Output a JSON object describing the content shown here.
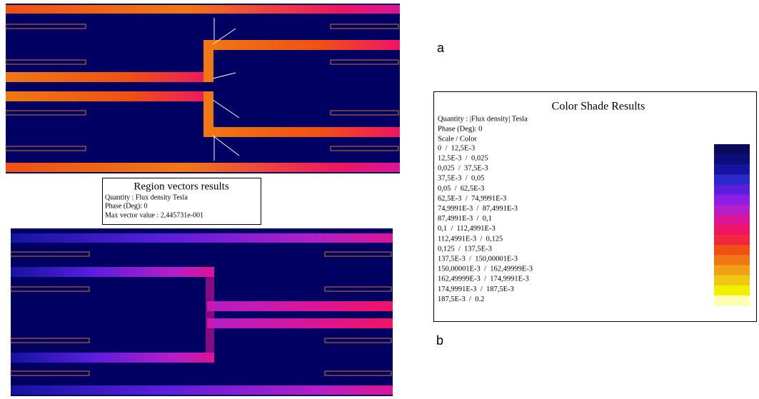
{
  "figure": {
    "labels": {
      "a": "a",
      "b": "b"
    },
    "region_vectors": {
      "title": "Region vectors results",
      "quantity": "Quantity : Flux density Tesla",
      "phase": "Phase (Deg): 0",
      "max_vector": "Max vector value : 2,445731e-001"
    },
    "color_shade": {
      "title": "Color Shade Results",
      "quantity": "Quantity : |Flux density| Tesla",
      "phase": "Phase (Deg): 0",
      "scale_header": "Scale / Color",
      "scale": [
        {
          "range": "0  /  12,5E-3",
          "color": "#0a0a5a"
        },
        {
          "range": "12,5E-3  /  0,025",
          "color": "#0c0c7a"
        },
        {
          "range": "0,025  /  37,5E-3",
          "color": "#1414a0"
        },
        {
          "range": "37,5E-3  /  0,05",
          "color": "#2a28c8"
        },
        {
          "range": "0,05  /  62,5E-3",
          "color": "#5a1edc"
        },
        {
          "range": "62,5E-3  /  74,9991E-3",
          "color": "#8c1ee6"
        },
        {
          "range": "74,9991E-3  /  87,4991E-3",
          "color": "#b41ec8"
        },
        {
          "range": "87,4991E-3  /  0,1",
          "color": "#dc1496"
        },
        {
          "range": "0,1  /  112,4991E-3",
          "color": "#f01464"
        },
        {
          "range": "112,4991E-3  /  0,125",
          "color": "#f0283c"
        },
        {
          "range": "0,125  /  137,5E-3",
          "color": "#f05014"
        },
        {
          "range": "137,5E-3  /  150,00001E-3",
          "color": "#f07814"
        },
        {
          "range": "150,00001E-3  /  162,49999E-3",
          "color": "#f0a014"
        },
        {
          "range": "162,49999E-3  /  174,9991E-3",
          "color": "#f0c814"
        },
        {
          "range": "174,9991E-3  /  187,5E-3",
          "color": "#f0f000"
        },
        {
          "range": "187,5E-3  /  0.2",
          "color": "#ffffb4"
        }
      ]
    }
  }
}
